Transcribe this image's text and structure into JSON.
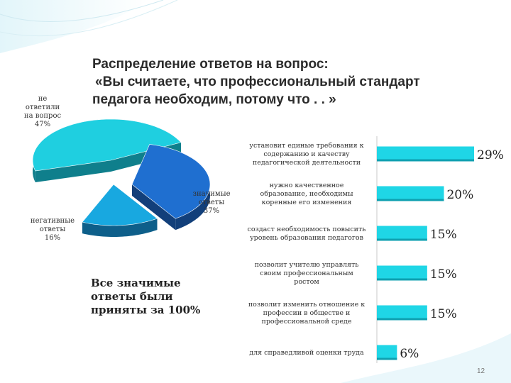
{
  "title": {
    "line1": "Распределение ответов на вопрос:",
    "line2": "«Вы считаете, что профессиональный стандарт",
    "line3": "педагога необходим, потому что . . »"
  },
  "pie_labels": {
    "no_answer": [
      "не",
      "ответили",
      "на вопрос",
      "47%"
    ],
    "negative": [
      "негативные",
      "ответы",
      "16%"
    ],
    "significant": [
      "значимые",
      "ответы",
      "37%"
    ]
  },
  "note": "Все значимые ответы были приняты за 100%",
  "page_number": "12",
  "colors": {
    "cyan": "#1fcfe0",
    "cyan_dark": "#0f7f8c",
    "blue": "#1f6fd0",
    "blue_dark": "#123f7a",
    "light_blue": "#18a8e0",
    "light_blue_dark": "#0e5f8a",
    "bar": "#1fd6e6",
    "bar_dark": "#0fa0b0"
  },
  "chart_data": [
    {
      "type": "pie",
      "title": "",
      "slices": [
        {
          "label": "не ответили на вопрос",
          "value": 47
        },
        {
          "label": "значимые ответы",
          "value": 37
        },
        {
          "label": "негативные ответы",
          "value": 16
        }
      ]
    },
    {
      "type": "bar",
      "orientation": "horizontal",
      "title": "",
      "categories": [
        [
          "установит единые требования к",
          "содержанию и качеству",
          "педагогической деятельности"
        ],
        [
          "нужно качественное",
          "образование, необходимы",
          "коренные его изменения"
        ],
        [
          "создаст необходимость повысить",
          "уровень образования педагогов"
        ],
        [
          "позволит учителю управлять",
          "своим профессиональным",
          "ростом"
        ],
        [
          "позволит изменить отношение к",
          "профессии в обществе и",
          "профессиональной среде"
        ],
        [
          "для справедливой оценки труда"
        ]
      ],
      "values": [
        29,
        20,
        15,
        15,
        15,
        6
      ],
      "value_labels": [
        "29%",
        "20%",
        "15%",
        "15%",
        "15%",
        "6%"
      ],
      "xlim": [
        0,
        29
      ]
    }
  ]
}
